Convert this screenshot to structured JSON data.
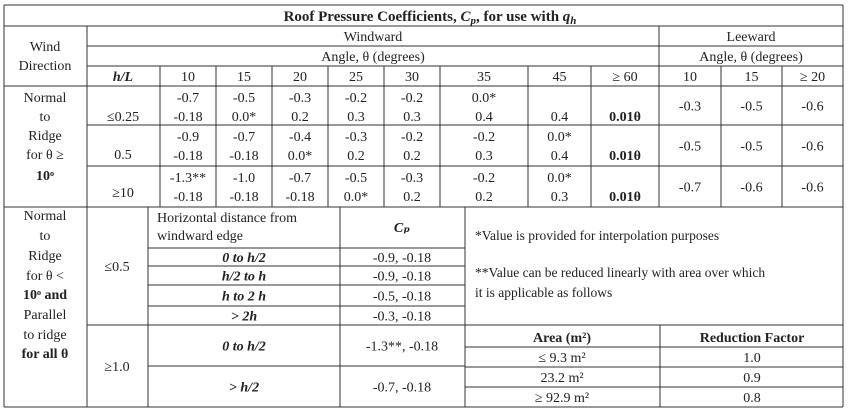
{
  "title": "Roof Pressure Coefficients, Cₚ, for use with qₕ",
  "title_parts": {
    "main": "Roof Pressure Coefficients, ",
    "cp": "C",
    "cp_sub": "p",
    "mid": ", for use with ",
    "q": "q",
    "q_sub": "h"
  },
  "wind_direction": [
    "Wind",
    "Direction"
  ],
  "windward_label": "Windward",
  "leeward_label": "Leeward",
  "angle_label_windward": "Angle, θ (degrees)",
  "angle_label_leeward": "Angle, θ (degrees)",
  "hl_label": "h/L",
  "windward_angles": [
    "10",
    "15",
    "20",
    "25",
    "30",
    "35",
    "45",
    "≥ 60"
  ],
  "leeward_angles": [
    "10",
    "15",
    "≥ 20"
  ],
  "normal_section": {
    "label": [
      "Normal",
      "to",
      "Ridge",
      "for θ ≥",
      "10ᵒ"
    ],
    "rows": [
      {
        "hl": "≤0.25",
        "windward": [
          [
            "-0.7",
            "-0.18"
          ],
          [
            "-0.5",
            "0.0*"
          ],
          [
            "-0.3",
            "0.2"
          ],
          [
            "-0.2",
            "0.3"
          ],
          [
            "-0.2",
            "0.3"
          ],
          [
            "0.0*",
            "0.4"
          ],
          [
            "",
            "0.4"
          ],
          [
            "",
            "0.01θ"
          ]
        ],
        "leeward": [
          "-0.3",
          "-0.5",
          "-0.6"
        ]
      },
      {
        "hl": "0.5",
        "windward": [
          [
            "-0.9",
            "-0.18"
          ],
          [
            "-0.7",
            "-0.18"
          ],
          [
            "-0.4",
            "0.0*"
          ],
          [
            "-0.3",
            "0.2"
          ],
          [
            "-0.2",
            "0.2"
          ],
          [
            "-0.2",
            "0.3"
          ],
          [
            "0.0*",
            "0.4"
          ],
          [
            "",
            "0.01θ"
          ]
        ],
        "leeward": [
          "-0.5",
          "-0.5",
          "-0.6"
        ]
      },
      {
        "hl": "≥10",
        "windward": [
          [
            "-1.3**",
            "-0.18"
          ],
          [
            "-1.0",
            "-0.18"
          ],
          [
            "-0.7",
            "-0.18"
          ],
          [
            "-0.5",
            "0.0*"
          ],
          [
            "-0.3",
            "0.2"
          ],
          [
            "-0.2",
            "0.2"
          ],
          [
            "0.0*",
            "0.3"
          ],
          [
            "",
            "0.01θ"
          ]
        ],
        "leeward": [
          "-0.7",
          "-0.6",
          "-0.6"
        ]
      }
    ]
  },
  "parallel_section": {
    "label": [
      "Normal",
      "to",
      "Ridge",
      "for θ <",
      "10ᵒ and",
      "Parallel",
      "to ridge",
      "for all θ"
    ],
    "horizontal_distance_header": [
      "Horizontal distance from",
      "windward edge"
    ],
    "cp_header": "Cₚ",
    "groups": [
      {
        "hl": "≤0.5",
        "rows": [
          {
            "distance": "0 to h/2",
            "cp": "-0.9, -0.18"
          },
          {
            "distance": "h/2 to h",
            "cp": "-0.9, -0.18"
          },
          {
            "distance": "h to 2 h",
            "cp": "-0.5, -0.18"
          },
          {
            "distance": "> 2h",
            "cp": "-0.3, -0.18"
          }
        ]
      },
      {
        "hl": "≥1.0",
        "rows": [
          {
            "distance": "0 to h/2",
            "cp": "-1.3**, -0.18"
          },
          {
            "distance": "> h/2",
            "cp": "-0.7, -0.18"
          }
        ]
      }
    ],
    "notes": [
      "*Value is provided for interpolation purposes",
      "**Value can be reduced linearly with area over which",
      "it is applicable as follows"
    ],
    "reduction_table": {
      "headers": [
        "Area (m²)",
        "Reduction Factor"
      ],
      "rows": [
        [
          "≤ 9.3 m²",
          "1.0"
        ],
        [
          "23.2 m²",
          "0.9"
        ],
        [
          "≥ 92.9 m²",
          "0.8"
        ]
      ]
    }
  }
}
